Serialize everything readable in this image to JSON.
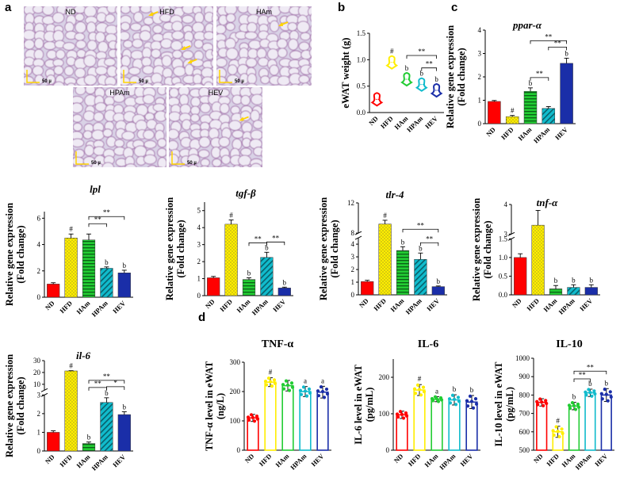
{
  "panel_letters": {
    "a": "a",
    "b": "b",
    "c": "c",
    "d": "d"
  },
  "colors": {
    "ND": "#ff0000",
    "HFD": "#ffee00",
    "HAm": "#22cc33",
    "HPAm": "#11bbcc",
    "HEV": "#1a2ea8"
  },
  "patterns": {
    "ND": "solid",
    "HFD": "dots",
    "HAm": "hstripes",
    "HPAm": "diagstripes",
    "HEV": "solid"
  },
  "micrographs": [
    {
      "label": "ND",
      "scale": "50 µ",
      "arrows": 0
    },
    {
      "label": "HFD",
      "scale": "50 µ",
      "arrows": 3
    },
    {
      "label": "HAm",
      "scale": "50 µ",
      "arrows": 1
    },
    {
      "label": "HPAm",
      "scale": "50 µ",
      "arrows": 0
    },
    {
      "label": "HEV",
      "scale": "50 µ",
      "arrows": 1
    }
  ],
  "chart_data": [
    {
      "id": "ewat",
      "type": "violin",
      "panel": "b",
      "title": "",
      "ylabel": "eWAT weight (g)",
      "categories": [
        "ND",
        "HFD",
        "HAm",
        "HPAm",
        "HEV"
      ],
      "values": [
        0.25,
        0.95,
        0.63,
        0.53,
        0.42
      ],
      "ylim": [
        0,
        1.5
      ],
      "yticks": [
        0.0,
        0.5,
        1.0,
        1.5
      ],
      "yticklabels": [
        "0.0",
        "0.5",
        "1.0",
        "1.5"
      ],
      "annotations": [
        "",
        "#",
        "b",
        "b",
        "b"
      ],
      "brackets": [
        {
          "from": 2,
          "to": 4,
          "label": "**"
        },
        {
          "from": 3,
          "to": 4,
          "label": "**"
        }
      ]
    },
    {
      "id": "ppar",
      "type": "bar",
      "panel": "c",
      "title": "ppar-α",
      "ylabel": "Relative gene expression",
      "ylabel2": "(Fold change)",
      "categories": [
        "ND",
        "HFD",
        "HAm",
        "HPAm",
        "HEV"
      ],
      "values": [
        0.95,
        0.3,
        1.38,
        0.65,
        2.58
      ],
      "errors": [
        0.04,
        0.05,
        0.15,
        0.08,
        0.22
      ],
      "ylim": [
        0,
        4
      ],
      "yticks": [
        0,
        1,
        2,
        3,
        4
      ],
      "yticklabels": [
        "0",
        "1",
        "2",
        "3",
        "4"
      ],
      "annotations": [
        "",
        "#",
        "b",
        "",
        "b"
      ],
      "brackets": [
        {
          "from": 2,
          "to": 4,
          "label": "**"
        },
        {
          "from": 2,
          "to": 3,
          "label": "**"
        },
        {
          "from": 3,
          "to": 4,
          "label": "**"
        }
      ]
    },
    {
      "id": "lpl",
      "type": "bar",
      "title": "lpl",
      "ylabel": "Relative gene expression",
      "ylabel2": "(Fold change)",
      "categories": [
        "ND",
        "HFD",
        "HAm",
        "HPAm",
        "HEV"
      ],
      "values": [
        1.0,
        4.5,
        4.35,
        2.2,
        1.85
      ],
      "errors": [
        0.1,
        0.3,
        0.45,
        0.1,
        0.2
      ],
      "ylim": [
        0,
        6.5
      ],
      "yticks": [
        0,
        2,
        4,
        6
      ],
      "yticklabels": [
        "0",
        "2",
        "4",
        "6"
      ],
      "annotations": [
        "",
        "#",
        "",
        "b",
        "b"
      ],
      "brackets": [
        {
          "from": 2,
          "to": 4,
          "label": "**"
        },
        {
          "from": 2,
          "to": 3,
          "label": "**"
        }
      ]
    },
    {
      "id": "tgf",
      "type": "bar",
      "title": "tgf-β",
      "ylabel": "Relative gene expression",
      "ylabel2": "(Fold change)",
      "categories": [
        "ND",
        "HFD",
        "HAm",
        "HPAm",
        "HEV"
      ],
      "values": [
        1.05,
        4.2,
        0.95,
        2.25,
        0.45
      ],
      "errors": [
        0.08,
        0.25,
        0.1,
        0.3,
        0.05
      ],
      "ylim": [
        0,
        5.5
      ],
      "yticks": [
        0,
        1,
        2,
        3,
        4,
        5
      ],
      "yticklabels": [
        "0",
        "1",
        "2",
        "3",
        "4",
        "5"
      ],
      "annotations": [
        "",
        "#",
        "b",
        "b",
        "b"
      ],
      "brackets": [
        {
          "from": 2,
          "to": 3,
          "label": "**"
        },
        {
          "from": 3,
          "to": 4,
          "label": "**"
        }
      ]
    },
    {
      "id": "tlr",
      "type": "bar",
      "title": "tlr-4",
      "ylabel": "Relative gene expression",
      "ylabel2": "(Fold change)",
      "categories": [
        "ND",
        "HFD",
        "HAm",
        "HPAm",
        "HEV"
      ],
      "values": [
        1.05,
        9.2,
        3.5,
        2.8,
        0.65
      ],
      "errors": [
        0.1,
        0.5,
        0.3,
        0.5,
        0.05
      ],
      "broken_axis": {
        "lower": [
          0,
          4.5
        ],
        "upper": [
          8,
          12
        ]
      },
      "yticks": [
        0,
        1,
        2,
        3,
        4,
        8,
        12
      ],
      "yticklabels": [
        "0",
        "1",
        "2",
        "3",
        "4",
        "8",
        "12"
      ],
      "annotations": [
        "",
        "#",
        "b",
        "b",
        "b"
      ],
      "brackets": [
        {
          "from": 2,
          "to": 4,
          "label": "**"
        },
        {
          "from": 3,
          "to": 4,
          "label": "**"
        }
      ]
    },
    {
      "id": "tnf",
      "type": "bar",
      "title": "tnf-α",
      "ylabel": "Relative gene expression",
      "ylabel2": "(Fold change)",
      "categories": [
        "ND",
        "HFD",
        "HAm",
        "HPAm",
        "HEV"
      ],
      "values": [
        1.0,
        3.3,
        0.16,
        0.2,
        0.2
      ],
      "errors": [
        0.1,
        0.5,
        0.09,
        0.07,
        0.07
      ],
      "broken_axis": {
        "lower": [
          0,
          1.5
        ],
        "upper": [
          3,
          4
        ]
      },
      "yticks": [
        0.0,
        0.5,
        1.0,
        1.5,
        3,
        4
      ],
      "yticklabels": [
        "0.0",
        "0.5",
        "1.0",
        "1.5",
        "3",
        "4"
      ],
      "annotations": [
        "",
        "",
        "b",
        "b",
        "b"
      ],
      "brackets": []
    },
    {
      "id": "il6",
      "type": "bar",
      "title": "il-6",
      "ylabel": "Relative gene expression",
      "ylabel2": "(Fold change)",
      "categories": [
        "ND",
        "HFD",
        "HAm",
        "HPAm",
        "HEV"
      ],
      "values": [
        1.0,
        21.3,
        0.4,
        2.6,
        1.95
      ],
      "errors": [
        0.08,
        0.2,
        0.08,
        0.25,
        0.15
      ],
      "broken_axis": {
        "lower": [
          0,
          3
        ],
        "upper": [
          5,
          30
        ]
      },
      "yticks": [
        0,
        1,
        2,
        3,
        10,
        20,
        30
      ],
      "yticklabels": [
        "0",
        "1",
        "2",
        "3",
        "10",
        "20",
        "30"
      ],
      "annotations": [
        "",
        "#",
        "b",
        "b",
        "b"
      ],
      "brackets": [
        {
          "from": 2,
          "to": 4,
          "label": "**"
        },
        {
          "from": 2,
          "to": 3,
          "label": "**"
        },
        {
          "from": 3,
          "to": 4,
          "label": "*"
        }
      ]
    },
    {
      "id": "tnfelisa",
      "type": "bar_scatter",
      "panel": "d",
      "title": "TNF-α",
      "ylabel": "TNF-α level in eWAT",
      "ylabel2": "(ng/L)",
      "categories": [
        "ND",
        "HFD",
        "HAm",
        "HPAm",
        "HEV"
      ],
      "values": [
        110,
        232,
        220,
        200,
        198
      ],
      "errors": [
        12,
        15,
        18,
        17,
        20
      ],
      "ylim": [
        0,
        300
      ],
      "yticks": [
        0,
        100,
        200,
        300
      ],
      "yticklabels": [
        "0",
        "100",
        "200",
        "300"
      ],
      "annotations": [
        "",
        "#",
        "",
        "a",
        "a"
      ],
      "brackets": []
    },
    {
      "id": "il6elisa",
      "type": "bar_scatter",
      "title": "IL-6",
      "ylabel": "IL-6 level in eWAT",
      "ylabel2": "(pg/mL)",
      "categories": [
        "ND",
        "HFD",
        "HAm",
        "HPAm",
        "HEV"
      ],
      "values": [
        97,
        165,
        140,
        138,
        132
      ],
      "errors": [
        10,
        15,
        7,
        14,
        18
      ],
      "ylim": [
        0,
        250
      ],
      "yticks": [
        0,
        100,
        200
      ],
      "yticklabels": [
        "0",
        "100",
        "200"
      ],
      "annotations": [
        "",
        "#",
        "a",
        "b",
        "b"
      ],
      "brackets": []
    },
    {
      "id": "il10elisa",
      "type": "bar_scatter",
      "title": "IL-10",
      "ylabel": "IL-10 level in eWAT",
      "ylabel2": "(pg/mL)",
      "categories": [
        "ND",
        "HFD",
        "HAm",
        "HPAm",
        "HEV"
      ],
      "values": [
        760,
        600,
        740,
        812,
        800
      ],
      "errors": [
        20,
        30,
        20,
        20,
        35
      ],
      "ylim": [
        500,
        1000
      ],
      "yticks": [
        500,
        600,
        700,
        800,
        900,
        1000
      ],
      "yticklabels": [
        "500",
        "600",
        "700",
        "800",
        "900",
        "1000"
      ],
      "annotations": [
        "",
        "#",
        "b",
        "b",
        "b"
      ],
      "brackets": [
        {
          "from": 2,
          "to": 4,
          "label": "**"
        },
        {
          "from": 2,
          "to": 3,
          "label": "**"
        }
      ]
    }
  ]
}
